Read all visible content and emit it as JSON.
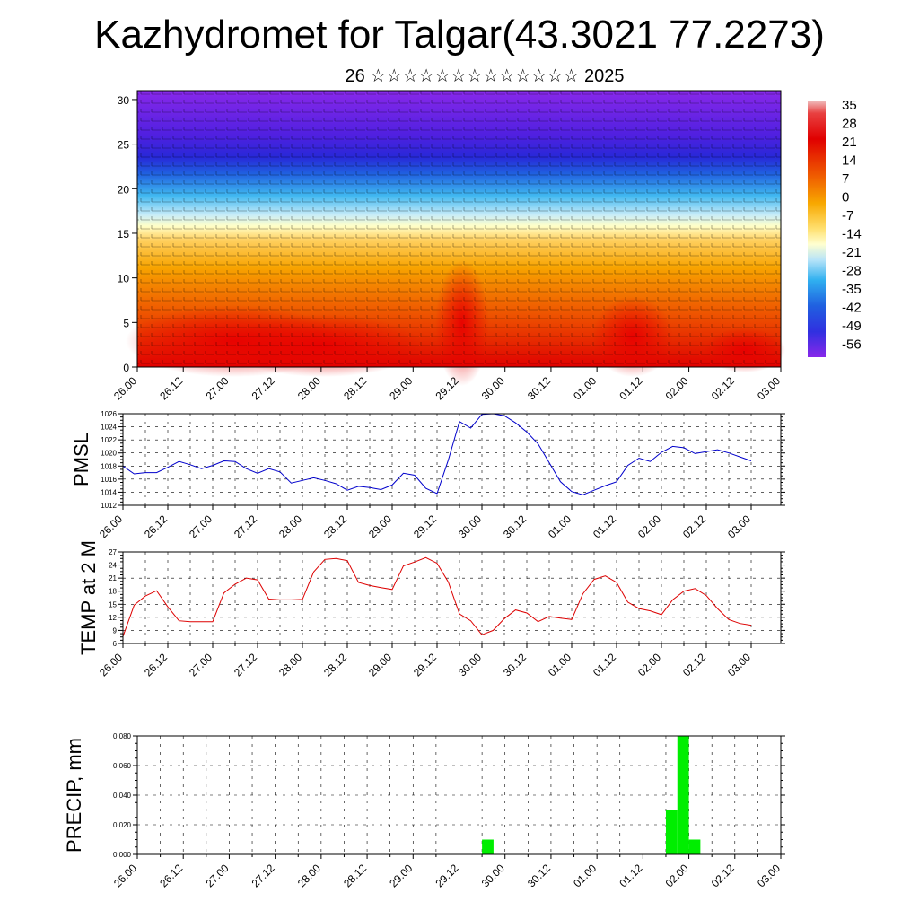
{
  "title": "Kazhydromet for Talgar(43.3021 77.2273)",
  "subtitle": "26 ☆☆☆☆☆☆☆☆☆☆☆☆☆ 2025",
  "chart_data": [
    {
      "type": "heatmap",
      "name": "cross-section",
      "yticks": [
        "0",
        "5",
        "10",
        "15",
        "20",
        "25",
        "30"
      ],
      "ylim": [
        0,
        31
      ],
      "xticks": [
        "26.00",
        "26.12",
        "27.00",
        "27.12",
        "28.00",
        "28.12",
        "29.00",
        "29.12",
        "30.00",
        "30.12",
        "01.00",
        "01.12",
        "02.00",
        "02.12",
        "03.00"
      ],
      "colorbar_labels": [
        "35",
        "28",
        "21",
        "14",
        "7",
        "0",
        "-7",
        "-14",
        "-21",
        "-28",
        "-35",
        "-42",
        "-49",
        "-56"
      ],
      "colors": {
        "warm": "#e80000",
        "mid": "#f8a000",
        "neutral": "#ffffc0",
        "cool": "#30b0f0",
        "cold": "#3030e0",
        "top": "#8020e8"
      }
    },
    {
      "type": "line",
      "ylabel": "PMSL",
      "ylim": [
        1012,
        1026
      ],
      "yticks": [
        "1012",
        "1014",
        "1016",
        "1018",
        "1020",
        "1022",
        "1024",
        "1026"
      ],
      "xticks": [
        "26.00",
        "26.12",
        "27.00",
        "27.12",
        "28.00",
        "28.12",
        "29.00",
        "29.12",
        "30.00",
        "30.12",
        "01.00",
        "01.12",
        "02.00",
        "02.12",
        "03.00"
      ],
      "color": "#0000cc",
      "x": [
        0,
        3,
        6,
        9,
        12,
        15,
        18,
        21,
        24,
        27,
        30,
        33,
        36,
        39,
        42,
        45,
        48,
        51,
        54,
        57,
        60,
        63,
        66,
        69,
        72,
        75,
        78,
        81,
        84,
        87,
        90,
        93,
        96,
        99,
        102,
        105,
        108,
        111,
        114,
        117,
        120,
        123,
        126,
        129,
        132,
        135,
        138,
        141,
        144,
        147,
        150,
        153,
        156,
        159,
        162,
        165,
        168
      ],
      "values": [
        1018,
        1016.8,
        1017,
        1017,
        1017.8,
        1018.7,
        1018.2,
        1017.6,
        1018.1,
        1018.8,
        1018.7,
        1017.6,
        1016.9,
        1017.6,
        1017.1,
        1015.4,
        1015.8,
        1016.2,
        1015.8,
        1015.3,
        1014.3,
        1014.9,
        1014.7,
        1014.4,
        1015.1,
        1016.9,
        1016.6,
        1014.6,
        1013.8,
        1018.9,
        1024.8,
        1023.8,
        1025.9,
        1026,
        1025.7,
        1024.6,
        1023.2,
        1021.4,
        1018.5,
        1015.6,
        1014.1,
        1013.6,
        1014.3,
        1015,
        1015.6,
        1018.1,
        1019.2,
        1018.7,
        1020.1,
        1021,
        1020.8,
        1019.9,
        1020.2,
        1020.5,
        1020,
        1019.4,
        1018.8
      ]
    },
    {
      "type": "line",
      "ylabel": "TEMP at 2 M",
      "ylim": [
        6,
        27
      ],
      "yticks": [
        "6",
        "9",
        "12",
        "15",
        "18",
        "21",
        "24",
        "27"
      ],
      "xticks": [
        "26.00",
        "26.12",
        "27.00",
        "27.12",
        "28.00",
        "28.12",
        "29.00",
        "29.12",
        "30.00",
        "30.12",
        "01.00",
        "01.12",
        "02.00",
        "02.12",
        "03.00"
      ],
      "color": "#dd0000",
      "x": [
        0,
        3,
        6,
        9,
        12,
        15,
        18,
        21,
        24,
        27,
        30,
        33,
        36,
        39,
        42,
        45,
        48,
        51,
        54,
        57,
        60,
        63,
        66,
        69,
        72,
        75,
        78,
        81,
        84,
        87,
        90,
        93,
        96,
        99,
        102,
        105,
        108,
        111,
        114,
        117,
        120,
        123,
        126,
        129,
        132,
        135,
        138,
        141,
        144,
        147,
        150,
        153,
        156,
        159,
        162,
        165,
        168
      ],
      "values": [
        7.6,
        14.8,
        16.9,
        18.1,
        14.4,
        11.2,
        11,
        11,
        11,
        17.6,
        19.6,
        21,
        20.6,
        16.2,
        16,
        16,
        16.1,
        22.4,
        25.3,
        25.5,
        25,
        20,
        19.3,
        18.8,
        18.4,
        23.8,
        24.7,
        25.7,
        24.4,
        20.1,
        12.8,
        11.2,
        8,
        9,
        11.7,
        13.7,
        13,
        11,
        12.2,
        11.8,
        11.5,
        17.4,
        20.7,
        21.5,
        20,
        15.5,
        14,
        13.5,
        12.6,
        16,
        18,
        18.6,
        17,
        14,
        11.5,
        10.6,
        10.2
      ]
    },
    {
      "type": "bar",
      "ylabel": "PRECIP, mm",
      "ylim": [
        0,
        0.08
      ],
      "yticks": [
        "0.000",
        "0.020",
        "0.040",
        "0.060",
        "0.080"
      ],
      "xticks": [
        "26.00",
        "26.12",
        "27.00",
        "27.12",
        "28.00",
        "28.12",
        "29.00",
        "29.12",
        "30.00",
        "30.12",
        "01.00",
        "01.12",
        "02.00",
        "02.12",
        "03.00"
      ],
      "color": "#00ee00",
      "x_start": [
        90,
        138,
        141,
        144
      ],
      "x_end": [
        93,
        141,
        144,
        147
      ],
      "values": [
        0.01,
        0.03,
        0.08,
        0.01
      ]
    }
  ]
}
